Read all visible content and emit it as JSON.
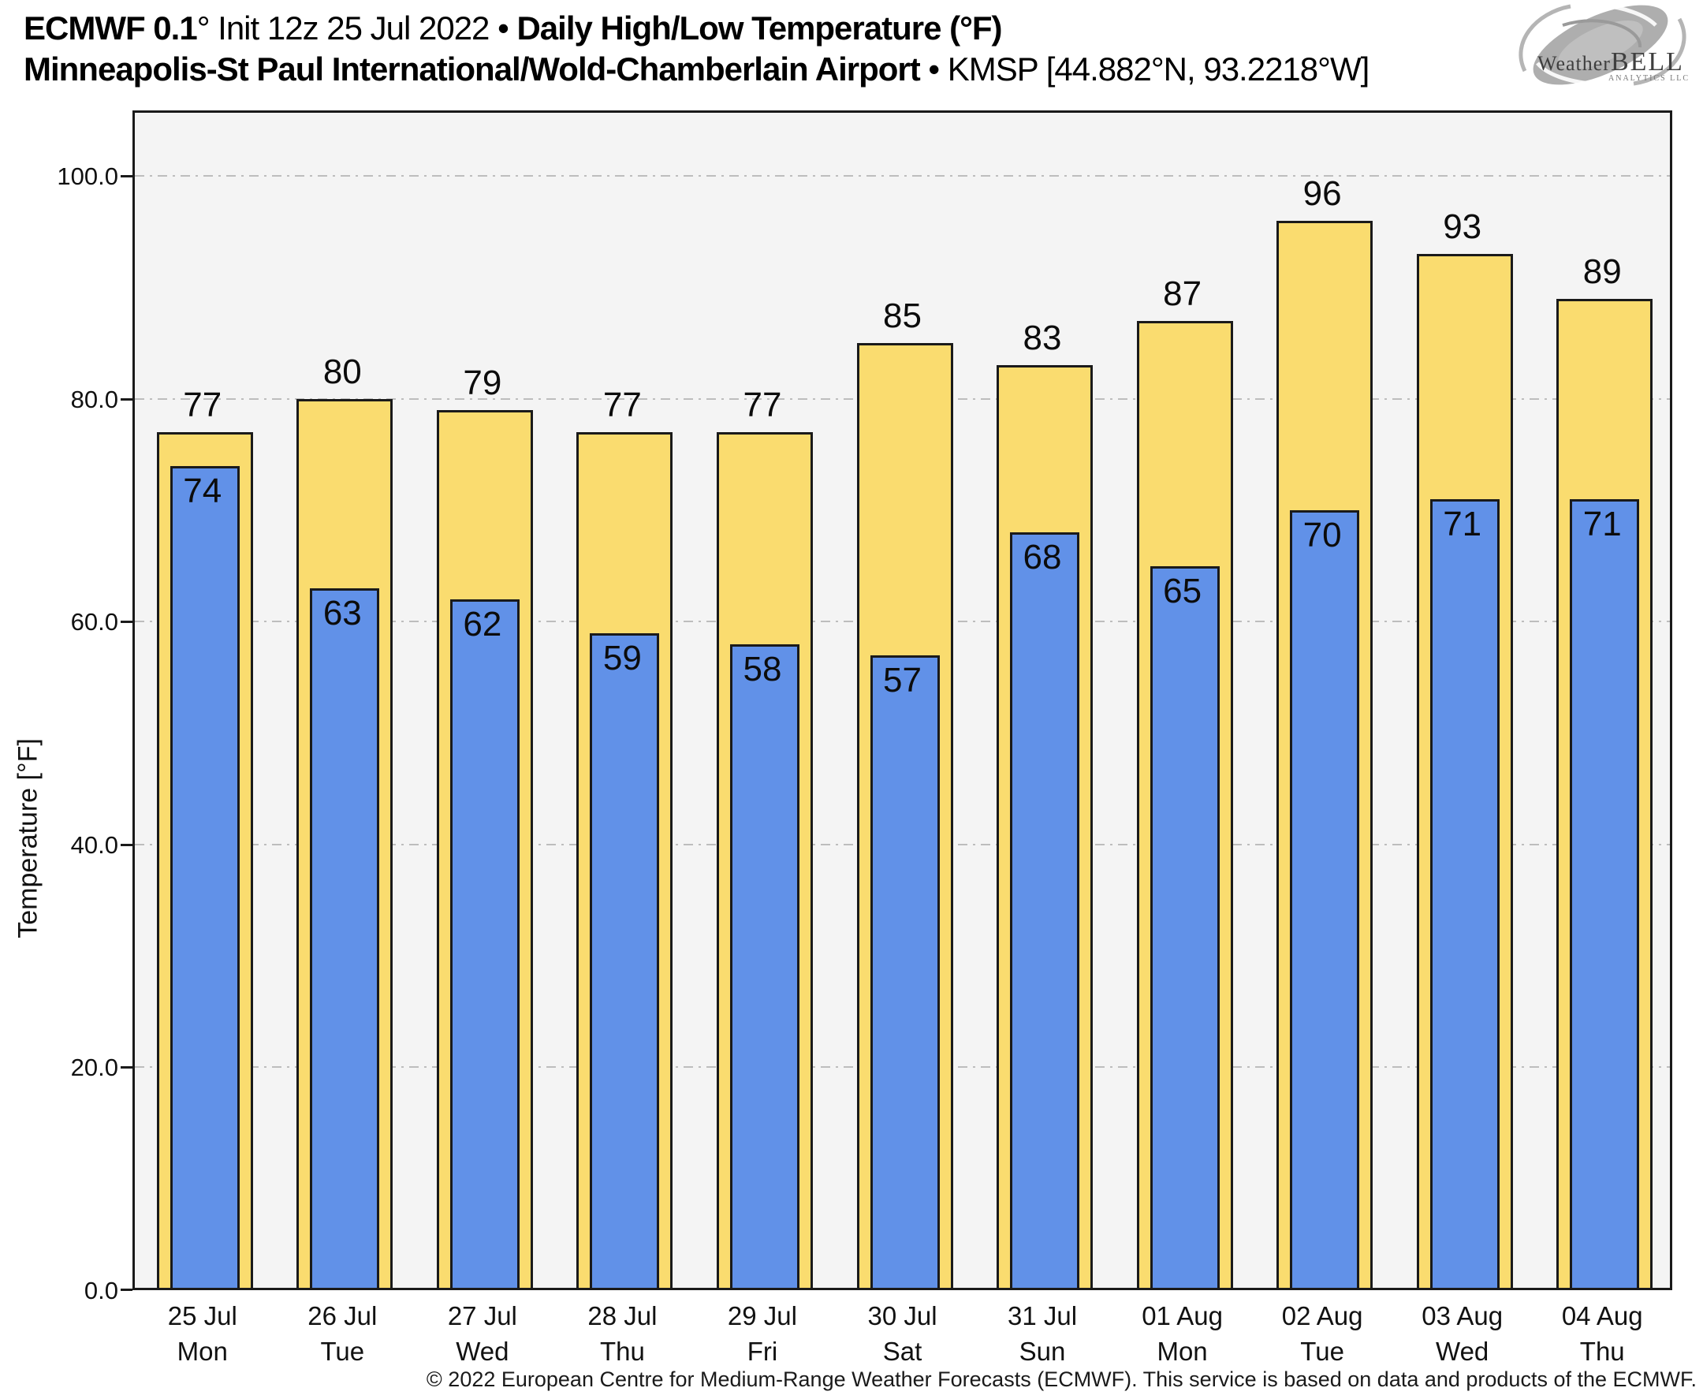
{
  "header": {
    "line1_brand": "ECMWF 0.1",
    "line1_init": "° Init 12z 25 Jul 2022",
    "line1_sep": " • ",
    "line1_subject": "Daily High/Low Temperature (°F)",
    "line2_station": "Minneapolis-St Paul International/Wold-Chamberlain Airport",
    "line2_sep": " • ",
    "line2_coords": "KMSP [44.882°N, 93.2218°W]"
  },
  "logo": {
    "weather": "Weather",
    "bell": "BELL",
    "sub": "Analytics LLC"
  },
  "chart_data": {
    "type": "bar",
    "title": "ECMWF 0.1° Init 12z 25 Jul 2022 • Daily High/Low Temperature (°F)",
    "subtitle": "Minneapolis-St Paul International/Wold-Chamberlain Airport • KMSP [44.882°N, 93.2218°W]",
    "categories": [
      {
        "date": "25 Jul",
        "day": "Mon"
      },
      {
        "date": "26 Jul",
        "day": "Tue"
      },
      {
        "date": "27 Jul",
        "day": "Wed"
      },
      {
        "date": "28 Jul",
        "day": "Thu"
      },
      {
        "date": "29 Jul",
        "day": "Fri"
      },
      {
        "date": "30 Jul",
        "day": "Sat"
      },
      {
        "date": "31 Jul",
        "day": "Sun"
      },
      {
        "date": "01 Aug",
        "day": "Mon"
      },
      {
        "date": "02 Aug",
        "day": "Tue"
      },
      {
        "date": "03 Aug",
        "day": "Wed"
      },
      {
        "date": "04 Aug",
        "day": "Thu"
      }
    ],
    "series": [
      {
        "name": "High",
        "color": "#FADC6F",
        "values": [
          77,
          80,
          79,
          77,
          77,
          85,
          83,
          87,
          96,
          93,
          89
        ]
      },
      {
        "name": "Low",
        "color": "#6191E8",
        "values": [
          74,
          63,
          62,
          59,
          58,
          57,
          68,
          65,
          70,
          71,
          71
        ]
      }
    ],
    "ylabel": "Temperature [°F]",
    "xlabel": "",
    "yticks": [
      0,
      20,
      40,
      60,
      80,
      100
    ],
    "ytick_labels": [
      "0.0",
      "20.0",
      "40.0",
      "60.0",
      "80.0",
      "100.0"
    ],
    "ylim": [
      0,
      105.9
    ],
    "grid": "horizontal dash-dot",
    "legend": "none",
    "bar_border_color": "#1a1a1a",
    "plot_background": "#f4f4f4"
  },
  "footer": {
    "copyright": "© 2022 European Centre for Medium-Range Weather Forecasts (ECMWF). This service is based on data and products of the ECMWF."
  }
}
